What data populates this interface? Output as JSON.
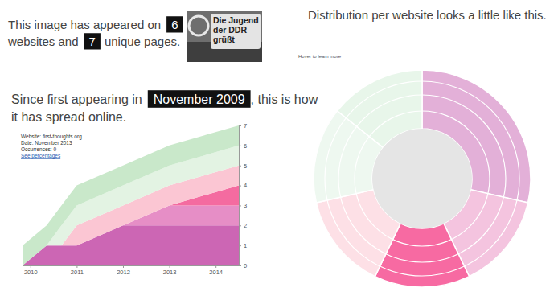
{
  "header": {
    "line1": "This image has appeared on",
    "websites": 6,
    "line2": "websites and",
    "pages": 7,
    "line3": "unique pages.",
    "thumbnail_text": [
      "Die Jugend",
      "der DDR",
      "grüßt"
    ]
  },
  "intro": {
    "before": "Since first appearing in",
    "date": "November 2009",
    "after": ", this is how",
    "line2": "it has spread online."
  },
  "chart_data": [
    {
      "type": "area",
      "stacked": true,
      "x": [
        2009.83,
        2010.35,
        2010.67,
        2011,
        2012,
        2013,
        2014.5
      ],
      "xlim": [
        2009.83,
        2014.5
      ],
      "xticks": [
        2010,
        2011,
        2012,
        2013,
        2014
      ],
      "ylim": [
        0,
        7
      ],
      "yticks": [
        0,
        1,
        2,
        3,
        4,
        5,
        6,
        7
      ],
      "series": [
        {
          "color": "#cc66b4",
          "values": [
            0,
            1,
            1,
            1,
            2,
            2,
            2
          ]
        },
        {
          "color": "#e68ec6",
          "values": [
            0,
            0,
            0,
            0,
            0,
            1,
            1
          ]
        },
        {
          "color": "#f46ba0",
          "values": [
            0,
            0,
            0,
            0,
            0,
            0,
            1
          ]
        },
        {
          "color": "#fbc6d3",
          "values": [
            0,
            0,
            0,
            1,
            1,
            1,
            1
          ]
        },
        {
          "color": "#e3f3e3",
          "values": [
            0,
            0,
            1,
            1,
            1,
            1,
            1
          ]
        },
        {
          "color": "#c9e8ca",
          "values": [
            1,
            1,
            1,
            1,
            1,
            1,
            1
          ]
        }
      ],
      "annotations": [
        "Website: first-thoughts.org",
        "Date: November 2013",
        "Occurrences: 0",
        "See percentages"
      ]
    },
    {
      "type": "pie",
      "title": "Distribution per website looks a little like this.",
      "values": [
        2,
        1,
        1,
        1,
        1,
        1
      ],
      "colors": [
        "#e3b0d8",
        "#f4c4df",
        "#f76aa2",
        "#fde0e6",
        "#eef8f0",
        "#e8f6ea"
      ],
      "annotations": [
        "Hover to learn more"
      ]
    }
  ]
}
